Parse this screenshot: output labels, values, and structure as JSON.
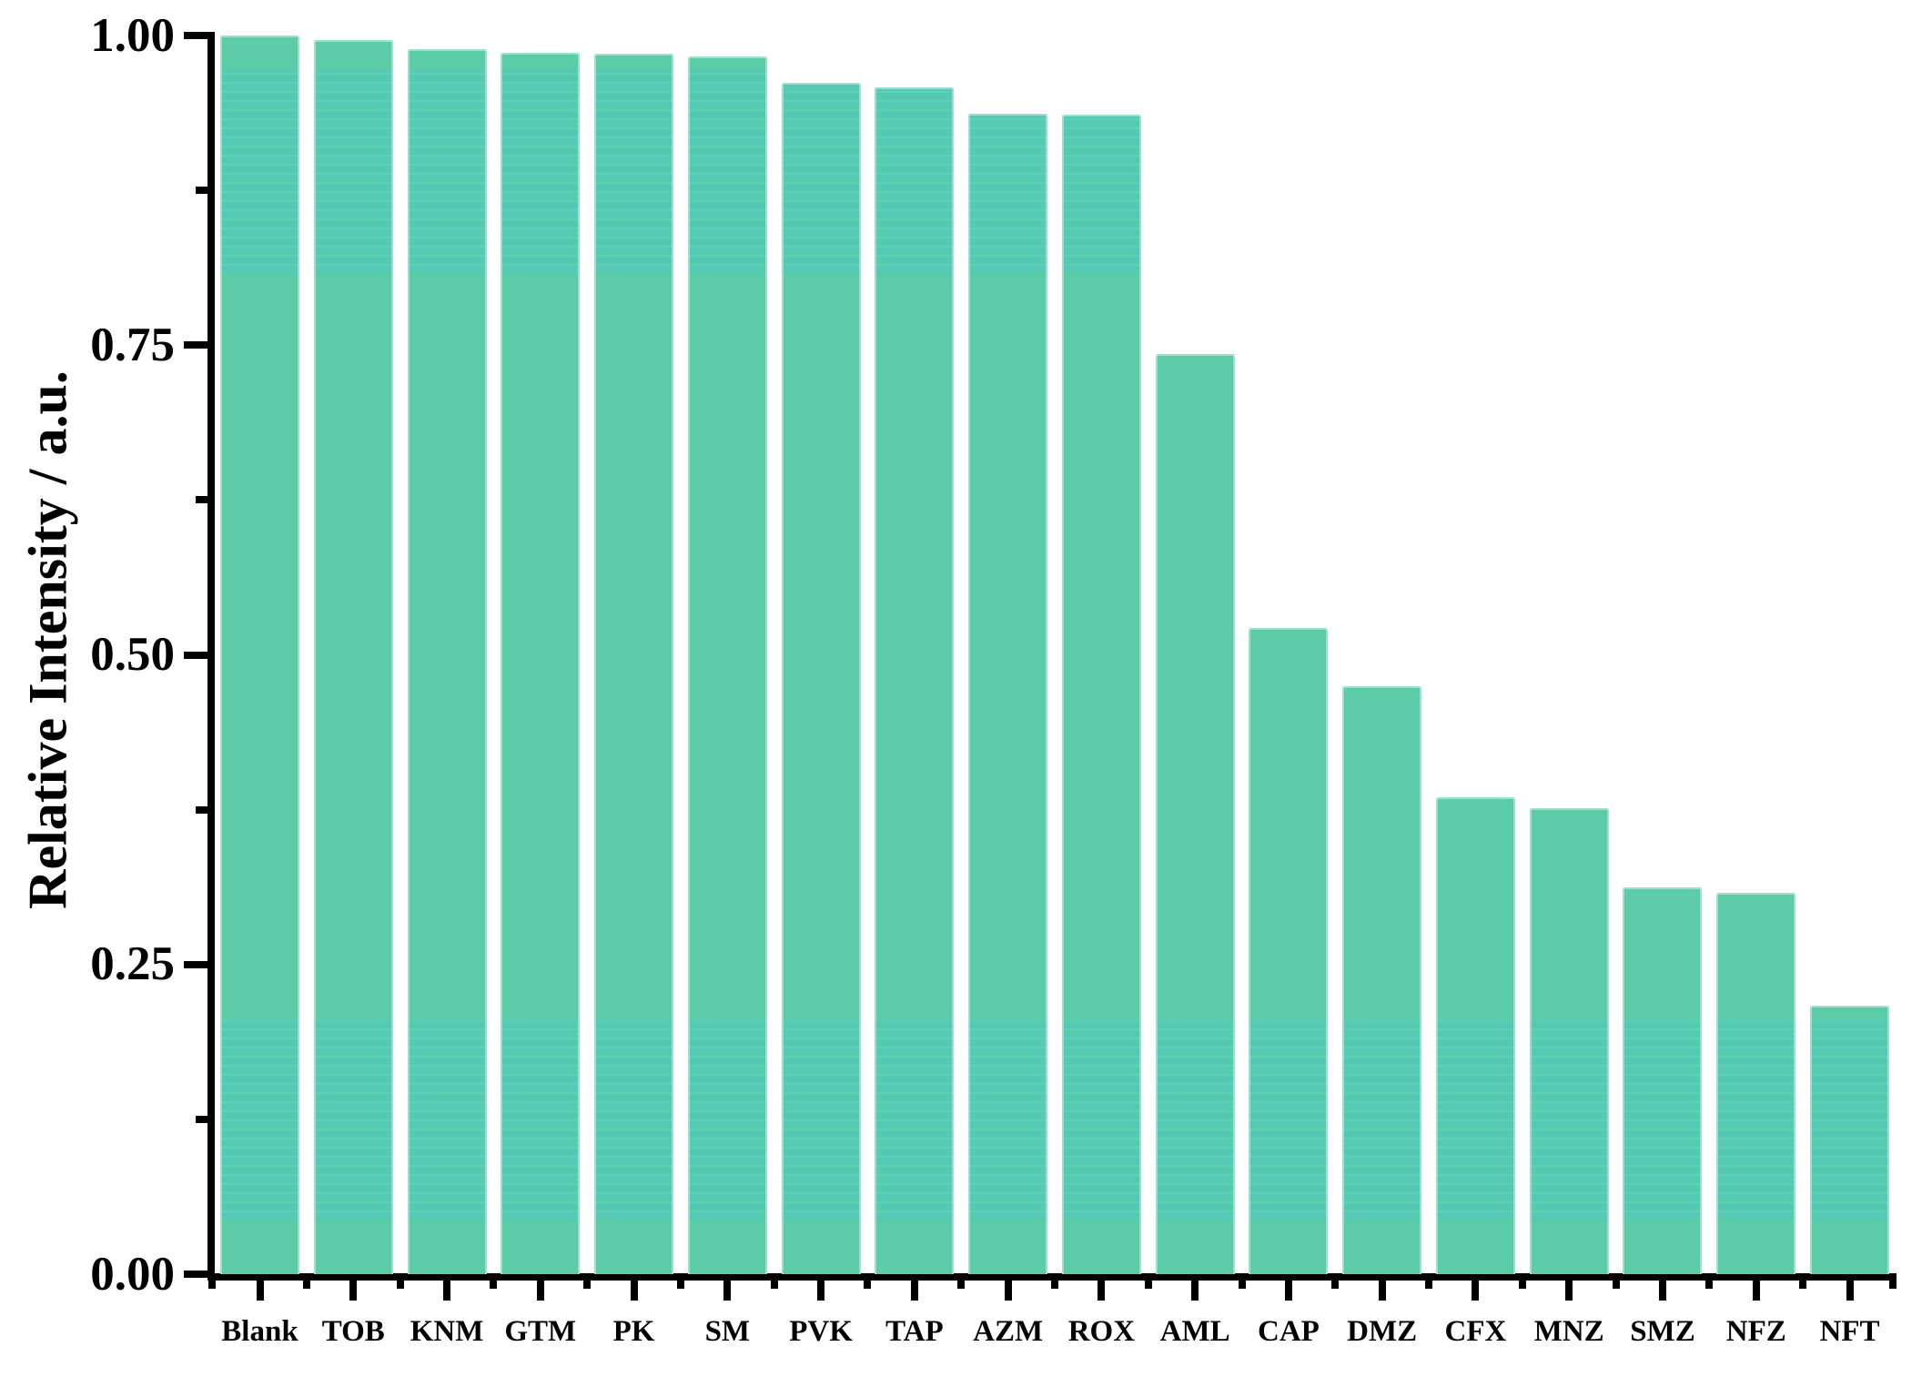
{
  "figure": {
    "background": "#ffffff"
  },
  "chart_data": {
    "type": "bar",
    "title": "",
    "xlabel": "",
    "ylabel": "Relative Intensity / a.u.",
    "categories": [
      "Blank",
      "TOB",
      "KNM",
      "GTM",
      "PK",
      "SM",
      "PVK",
      "TAP",
      "AZM",
      "ROX",
      "AML",
      "CAP",
      "DMZ",
      "CFX",
      "MNZ",
      "SMZ",
      "NFZ",
      "NFT"
    ],
    "values": [
      1.0,
      0.996,
      0.989,
      0.986,
      0.985,
      0.983,
      0.962,
      0.958,
      0.937,
      0.936,
      0.743,
      0.522,
      0.475,
      0.385,
      0.376,
      0.312,
      0.308,
      0.217
    ],
    "ylim": [
      0.0,
      1.0
    ],
    "yticks": [
      0.0,
      0.25,
      0.5,
      0.75,
      1.0
    ],
    "ytick_labels": [
      "0.00",
      "0.25",
      "0.50",
      "0.75",
      "1.00"
    ],
    "yminor_ticks": [
      0.125,
      0.375,
      0.625,
      0.875
    ],
    "grid": false,
    "legend": false,
    "bar_style": {
      "fill_green": "#5CCCA8",
      "band_teal": "#54CAB5",
      "band_stripe": "#5ED2AE",
      "edge_highlight": "rgba(255,255,255,0.40)",
      "bands_value_ranges": [
        [
          0.044,
          0.205
        ],
        [
          0.808,
          0.972
        ]
      ]
    },
    "axis_color": "#000000",
    "tick_label_color": "#000000"
  }
}
